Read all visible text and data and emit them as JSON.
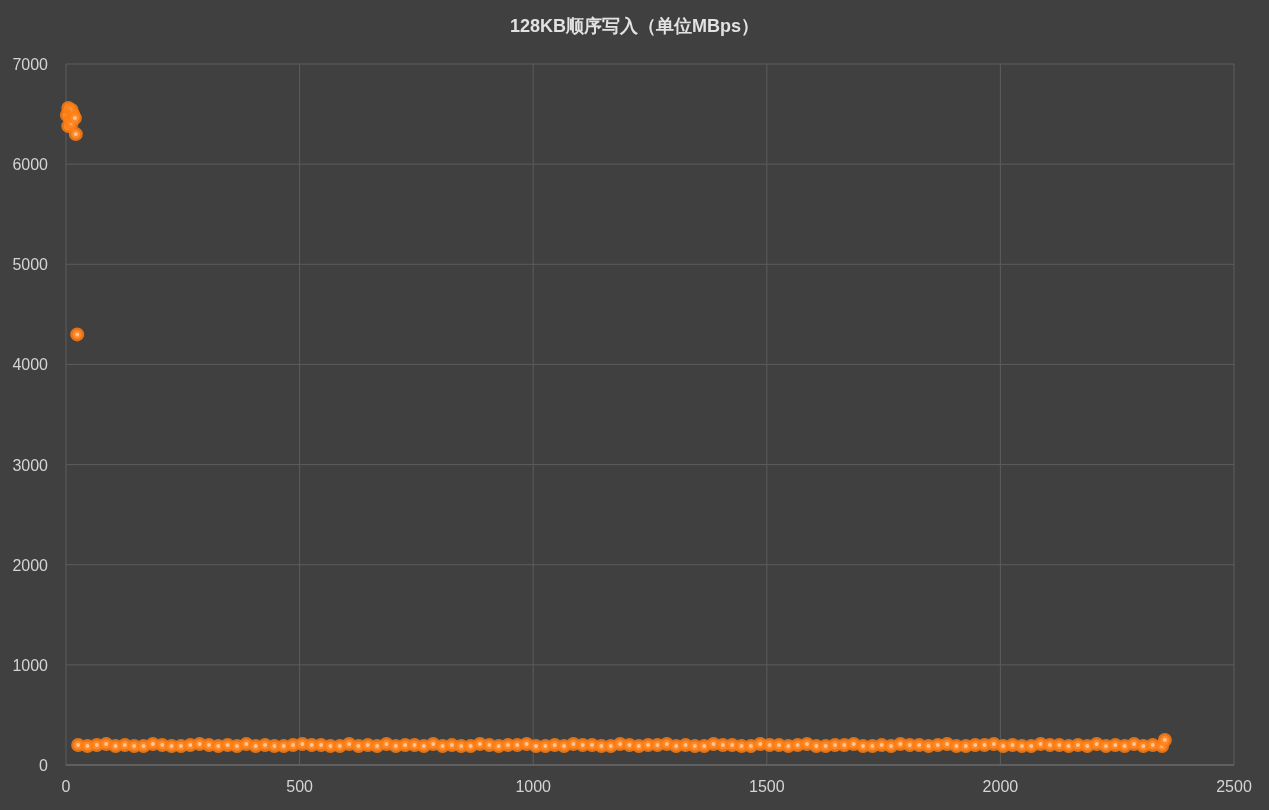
{
  "chart_data": {
    "type": "scatter",
    "title": "128KB顺序写入（单位MBps）",
    "x": [
      2,
      5,
      5,
      9,
      12,
      12,
      16,
      19,
      21,
      24,
      26,
      46,
      66,
      86,
      106,
      126,
      146,
      166,
      186,
      206,
      226,
      246,
      266,
      286,
      306,
      326,
      346,
      366,
      386,
      406,
      426,
      446,
      466,
      486,
      506,
      526,
      546,
      566,
      586,
      606,
      626,
      646,
      666,
      686,
      706,
      726,
      746,
      766,
      786,
      806,
      826,
      846,
      866,
      886,
      906,
      926,
      946,
      966,
      986,
      1006,
      1026,
      1046,
      1066,
      1086,
      1106,
      1126,
      1146,
      1166,
      1186,
      1206,
      1226,
      1246,
      1266,
      1286,
      1306,
      1326,
      1346,
      1366,
      1386,
      1406,
      1426,
      1446,
      1466,
      1486,
      1506,
      1526,
      1546,
      1566,
      1586,
      1606,
      1626,
      1646,
      1666,
      1686,
      1706,
      1726,
      1746,
      1766,
      1786,
      1806,
      1826,
      1846,
      1866,
      1886,
      1906,
      1926,
      1946,
      1966,
      1986,
      2006,
      2026,
      2046,
      2066,
      2086,
      2106,
      2126,
      2146,
      2166,
      2186,
      2206,
      2226,
      2246,
      2266,
      2286,
      2306,
      2326,
      2346,
      2352
    ],
    "values": [
      6490,
      6560,
      6380,
      6440,
      6540,
      6410,
      6490,
      6460,
      6300,
      4300,
      200,
      190,
      200,
      210,
      190,
      200,
      190,
      190,
      210,
      200,
      190,
      190,
      200,
      210,
      200,
      190,
      200,
      190,
      210,
      190,
      200,
      190,
      190,
      200,
      210,
      200,
      200,
      190,
      190,
      210,
      190,
      200,
      190,
      210,
      190,
      200,
      200,
      190,
      210,
      190,
      200,
      190,
      190,
      210,
      200,
      190,
      200,
      200,
      210,
      190,
      190,
      200,
      190,
      210,
      200,
      200,
      190,
      190,
      210,
      200,
      190,
      200,
      200,
      210,
      190,
      200,
      190,
      190,
      210,
      200,
      200,
      190,
      190,
      210,
      200,
      200,
      190,
      200,
      210,
      190,
      190,
      200,
      200,
      210,
      190,
      190,
      200,
      190,
      210,
      200,
      200,
      190,
      200,
      210,
      190,
      190,
      200,
      200,
      210,
      190,
      200,
      190,
      190,
      210,
      200,
      200,
      190,
      200,
      190,
      210,
      190,
      200,
      190,
      210,
      190,
      200,
      190,
      250
    ],
    "color": "#ff7c10",
    "marker": "circle",
    "xlim": [
      0,
      2500
    ],
    "ylim": [
      0,
      7000
    ],
    "xticks": [
      0,
      500,
      1000,
      1500,
      2000,
      2500
    ],
    "yticks": [
      0,
      1000,
      2000,
      3000,
      4000,
      5000,
      6000,
      7000
    ],
    "grid": true
  }
}
